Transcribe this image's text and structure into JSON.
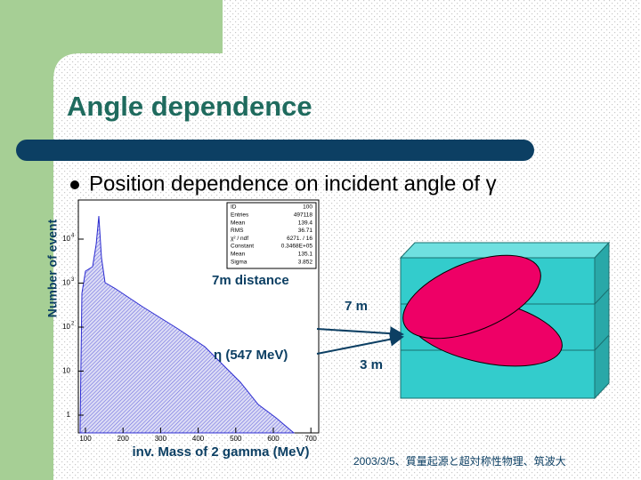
{
  "slide": {
    "title": "Angle dependence",
    "bullet": "Position dependence on incident angle of γ",
    "footer": "2003/3/5、質量起源と超対称性物理、筑波大"
  },
  "histogram": {
    "y_label": "Number of event",
    "x_label": "inv. Mass of 2 gamma (MeV)",
    "x_ticks": [
      "100",
      "200",
      "300",
      "400",
      "500",
      "600",
      "700"
    ],
    "y_ticks": [
      "1",
      "10",
      "10",
      "10",
      "10"
    ],
    "y_tick_exponents": [
      "",
      "",
      "2",
      "3",
      "4"
    ],
    "stats": [
      [
        "ID",
        "100"
      ],
      [
        "Entries",
        "497118"
      ],
      [
        "Mean",
        "139.4"
      ],
      [
        "RMS",
        "36.71"
      ],
      [
        "χ² / ndf",
        "6271.  /  16"
      ],
      [
        "Constant",
        "0.3468E+05"
      ],
      [
        "Mean",
        "135.1"
      ],
      [
        "Sigma",
        "3.852"
      ]
    ],
    "note_distance": "7m distance",
    "note_eta": "η (547 MeV)"
  },
  "diagram": {
    "label_distance": "7 m",
    "label_size": "3 m"
  }
}
